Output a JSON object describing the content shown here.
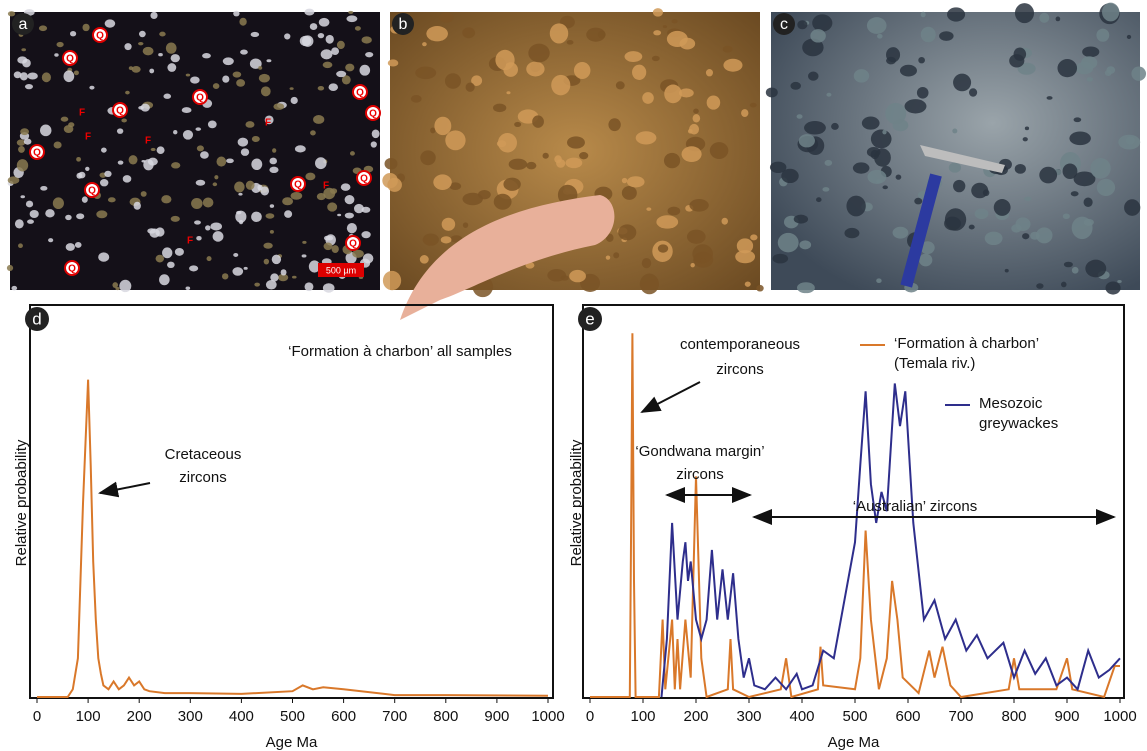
{
  "photos": [
    {
      "label": "a",
      "markers": [
        "Q",
        "Q",
        "Q",
        "Q",
        "Q",
        "Q",
        "Q",
        "Q",
        "Q",
        "Q",
        "Q",
        "Q",
        "F",
        "F",
        "F",
        "F",
        "F",
        "F"
      ],
      "scale_bar": "500 µm"
    },
    {
      "label": "b"
    },
    {
      "label": "c"
    }
  ],
  "chart_data": [
    {
      "type": "line",
      "panel_label": "d",
      "ylabel": "Relative probability",
      "xlabel": "Age Ma",
      "xlim": [
        0,
        1000
      ],
      "xticks": [
        0,
        100,
        200,
        300,
        400,
        500,
        600,
        700,
        800,
        900,
        1000
      ],
      "ylim": [
        0,
        1
      ],
      "annotations": [
        {
          "lines": [
            "‘Formation à charbon’ all samples"
          ]
        },
        {
          "lines": [
            "Cretaceous",
            "zircons"
          ]
        }
      ],
      "series": [
        {
          "color": "#d9782a",
          "x": [
            0,
            60,
            70,
            80,
            90,
            100,
            105,
            110,
            115,
            120,
            125,
            130,
            140,
            150,
            160,
            170,
            180,
            190,
            200,
            210,
            220,
            250,
            300,
            400,
            500,
            520,
            540,
            560,
            600,
            700,
            800,
            1000
          ],
          "values": [
            0,
            0,
            0.02,
            0.1,
            0.5,
            0.82,
            0.6,
            0.35,
            0.2,
            0.1,
            0.06,
            0.03,
            0.02,
            0.04,
            0.02,
            0.03,
            0.05,
            0.03,
            0.04,
            0.02,
            0.015,
            0.01,
            0.01,
            0.008,
            0.015,
            0.03,
            0.02,
            0.025,
            0.02,
            0.005,
            0.005,
            0.003
          ]
        }
      ]
    },
    {
      "type": "line",
      "panel_label": "e",
      "ylabel": "Relative probability",
      "xlabel": "Age Ma",
      "xlim": [
        0,
        1000
      ],
      "xticks": [
        0,
        100,
        200,
        300,
        400,
        500,
        600,
        700,
        800,
        900,
        1000
      ],
      "ylim": [
        0,
        1
      ],
      "annotations": [
        {
          "lines": [
            "contemporaneous",
            "zircons"
          ]
        },
        {
          "lines": [
            "‘Gondwana margin’",
            "zircons"
          ]
        },
        {
          "lines": [
            "‘Australian’ zircons"
          ]
        }
      ],
      "series": [
        {
          "name": "‘Formation à charbon’\n(Temala riv.)",
          "color": "#d9782a",
          "x": [
            0,
            75,
            78,
            80,
            83,
            86,
            130,
            137,
            142,
            155,
            160,
            165,
            170,
            180,
            190,
            200,
            210,
            220,
            260,
            265,
            270,
            300,
            360,
            370,
            380,
            430,
            435,
            440,
            500,
            510,
            520,
            530,
            545,
            560,
            570,
            580,
            590,
            620,
            640,
            650,
            665,
            680,
            700,
            790,
            800,
            810,
            880,
            900,
            910,
            970,
            990,
            1000
          ],
          "values": [
            0,
            0,
            0.5,
            0.94,
            0.3,
            0,
            0,
            0.2,
            0.02,
            0.2,
            0.02,
            0.15,
            0.02,
            0.2,
            0.05,
            0.57,
            0.1,
            0,
            0.02,
            0.15,
            0.02,
            0,
            0.02,
            0.1,
            0,
            0.02,
            0.13,
            0.03,
            0.02,
            0.1,
            0.43,
            0.2,
            0.02,
            0.1,
            0.3,
            0.2,
            0.05,
            0.01,
            0.12,
            0.05,
            0.13,
            0.03,
            0,
            0.02,
            0.1,
            0.02,
            0.02,
            0.1,
            0.02,
            0,
            0.08,
            0.08
          ]
        },
        {
          "name": "Mesozoic\ngreywackes",
          "color": "#2e2e8c",
          "x": [
            135,
            145,
            155,
            165,
            175,
            180,
            185,
            190,
            200,
            210,
            220,
            230,
            240,
            250,
            260,
            270,
            280,
            290,
            300,
            310,
            330,
            350,
            370,
            390,
            400,
            420,
            440,
            460,
            480,
            500,
            510,
            520,
            530,
            540,
            550,
            560,
            575,
            585,
            595,
            610,
            630,
            650,
            670,
            690,
            710,
            730,
            750,
            780,
            800,
            820,
            840,
            860,
            880,
            900,
            920,
            940,
            960,
            980,
            1000
          ],
          "values": [
            0,
            0.15,
            0.45,
            0.2,
            0.35,
            0.4,
            0.3,
            0.35,
            0.2,
            0.15,
            0.2,
            0.38,
            0.2,
            0.33,
            0.2,
            0.32,
            0.15,
            0.05,
            0.1,
            0.03,
            0.02,
            0.05,
            0.02,
            0.06,
            0.02,
            0.03,
            0.12,
            0.1,
            0.25,
            0.4,
            0.6,
            0.79,
            0.55,
            0.45,
            0.53,
            0.48,
            0.81,
            0.7,
            0.79,
            0.45,
            0.2,
            0.25,
            0.15,
            0.2,
            0.12,
            0.16,
            0.1,
            0.14,
            0.05,
            0.12,
            0.06,
            0.1,
            0.03,
            0.05,
            0.02,
            0.12,
            0.05,
            0.07,
            0.1
          ]
        }
      ]
    }
  ]
}
